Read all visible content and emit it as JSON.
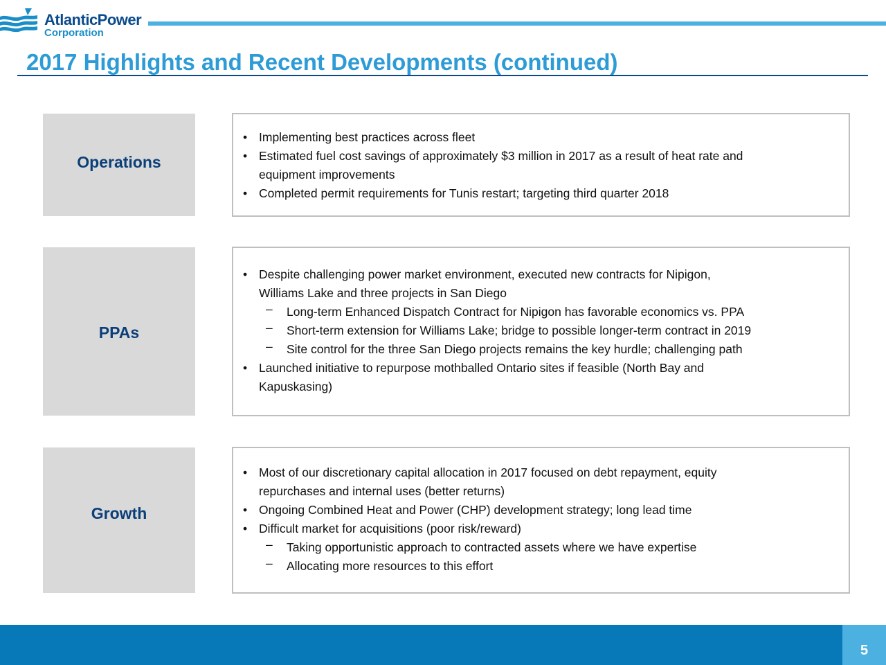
{
  "logo": {
    "line1": "AtlanticPower",
    "line2": "Corporation"
  },
  "title": "2017 Highlights and Recent Developments (continued)",
  "sections": [
    {
      "label": "Operations",
      "items": [
        {
          "marker": "•",
          "lines": [
            "Implementing best practices across fleet"
          ]
        },
        {
          "marker": "•",
          "lines": [
            "Estimated fuel cost savings of approximately $3 million in 2017 as a result of heat rate and",
            "equipment improvements"
          ]
        },
        {
          "marker": "•",
          "lines": [
            "Completed permit requirements for Tunis restart; targeting third quarter 2018"
          ]
        }
      ]
    },
    {
      "label": "PPAs",
      "items": [
        {
          "marker": "•",
          "lines": [
            "Despite challenging power market environment, executed new contracts for Nipigon,",
            "Williams Lake and three projects in San Diego"
          ]
        },
        {
          "marker": "–",
          "lines": [
            "Long-term Enhanced Dispatch Contract for Nipigon has favorable economics vs. PPA"
          ]
        },
        {
          "marker": "–",
          "lines": [
            "Short-term extension for Williams Lake; bridge to possible longer-term contract in 2019"
          ]
        },
        {
          "marker": "–",
          "lines": [
            "Site control for the three San Diego projects remains the key hurdle; challenging path"
          ]
        },
        {
          "marker": "•",
          "lines": [
            "Launched initiative to repurpose mothballed Ontario sites if feasible (North Bay and",
            "Kapuskasing)"
          ]
        }
      ]
    },
    {
      "label": "Growth",
      "items": [
        {
          "marker": "•",
          "lines": [
            "Most of our discretionary capital allocation in 2017 focused on debt repayment, equity",
            "repurchases and internal uses (better returns)"
          ]
        },
        {
          "marker": "•",
          "lines": [
            "Ongoing Combined Heat and Power (CHP) development strategy; long lead time"
          ]
        },
        {
          "marker": "•",
          "lines": [
            "Difficult market for acquisitions (poor risk/reward)"
          ]
        },
        {
          "marker": "–",
          "lines": [
            "Taking opportunistic approach to contracted assets where we have expertise"
          ]
        },
        {
          "marker": "–",
          "lines": [
            "Allocating more resources to this effort"
          ]
        }
      ]
    }
  ],
  "page_number": "5",
  "colors": {
    "brand_dark": "#0b4a8b",
    "brand_light": "#4cb1e1",
    "title": "#2d9bd5",
    "footer": "#0778b8",
    "label_bg": "#d9d9d9"
  }
}
